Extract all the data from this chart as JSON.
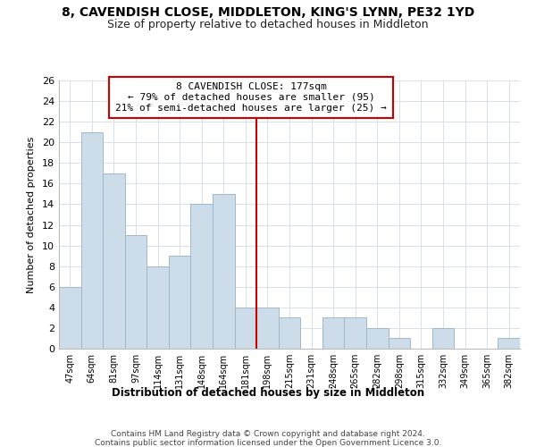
{
  "title": "8, CAVENDISH CLOSE, MIDDLETON, KING'S LYNN, PE32 1YD",
  "subtitle": "Size of property relative to detached houses in Middleton",
  "xlabel": "Distribution of detached houses by size in Middleton",
  "ylabel": "Number of detached properties",
  "bar_labels": [
    "47sqm",
    "64sqm",
    "81sqm",
    "97sqm",
    "114sqm",
    "131sqm",
    "148sqm",
    "164sqm",
    "181sqm",
    "198sqm",
    "215sqm",
    "231sqm",
    "248sqm",
    "265sqm",
    "282sqm",
    "298sqm",
    "315sqm",
    "332sqm",
    "349sqm",
    "365sqm",
    "382sqm"
  ],
  "bar_values": [
    6,
    21,
    17,
    11,
    8,
    9,
    14,
    15,
    4,
    4,
    3,
    0,
    3,
    3,
    2,
    1,
    0,
    2,
    0,
    0,
    1
  ],
  "bar_color": "#ccdce8",
  "bar_edge_color": "#a0b8cc",
  "vline_x": 8.5,
  "vline_color": "#cc0000",
  "annotation_title": "8 CAVENDISH CLOSE: 177sqm",
  "annotation_line1": "← 79% of detached houses are smaller (95)",
  "annotation_line2": "21% of semi-detached houses are larger (25) →",
  "annotation_box_edge": "#cc0000",
  "annotation_box_face": "#ffffff",
  "ylim": [
    0,
    26
  ],
  "yticks": [
    0,
    2,
    4,
    6,
    8,
    10,
    12,
    14,
    16,
    18,
    20,
    22,
    24,
    26
  ],
  "footer1": "Contains HM Land Registry data © Crown copyright and database right 2024.",
  "footer2": "Contains public sector information licensed under the Open Government Licence 3.0.",
  "background_color": "#ffffff",
  "grid_color": "#d8e0e8"
}
